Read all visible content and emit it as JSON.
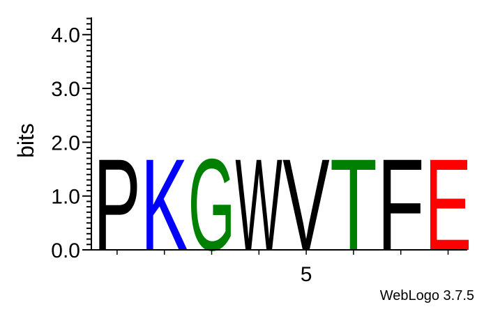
{
  "chart_data": {
    "type": "sequence-logo",
    "ylabel": "bits",
    "ylim": [
      0,
      4.32
    ],
    "y_ticks": [
      "0.0",
      "1.0",
      "2.0",
      "3.0",
      "4.0"
    ],
    "x_tick_labels": [
      {
        "position": 5,
        "label": "5"
      }
    ],
    "positions": [
      1,
      2,
      3,
      4,
      5,
      6,
      7,
      8
    ],
    "letters": [
      {
        "position": 1,
        "letter": "P",
        "bits": 1.75,
        "color": "#000000"
      },
      {
        "position": 2,
        "letter": "K",
        "bits": 1.75,
        "color": "#0000FF"
      },
      {
        "position": 3,
        "letter": "G",
        "bits": 1.75,
        "color": "#008000"
      },
      {
        "position": 4,
        "letter": "W",
        "bits": 1.75,
        "color": "#000000"
      },
      {
        "position": 5,
        "letter": "V",
        "bits": 1.75,
        "color": "#000000"
      },
      {
        "position": 6,
        "letter": "T",
        "bits": 1.75,
        "color": "#008000"
      },
      {
        "position": 7,
        "letter": "F",
        "bits": 1.75,
        "color": "#000000"
      },
      {
        "position": 8,
        "letter": "E",
        "bits": 1.75,
        "color": "#FF0000"
      }
    ]
  },
  "credit": "WebLogo 3.7.5"
}
